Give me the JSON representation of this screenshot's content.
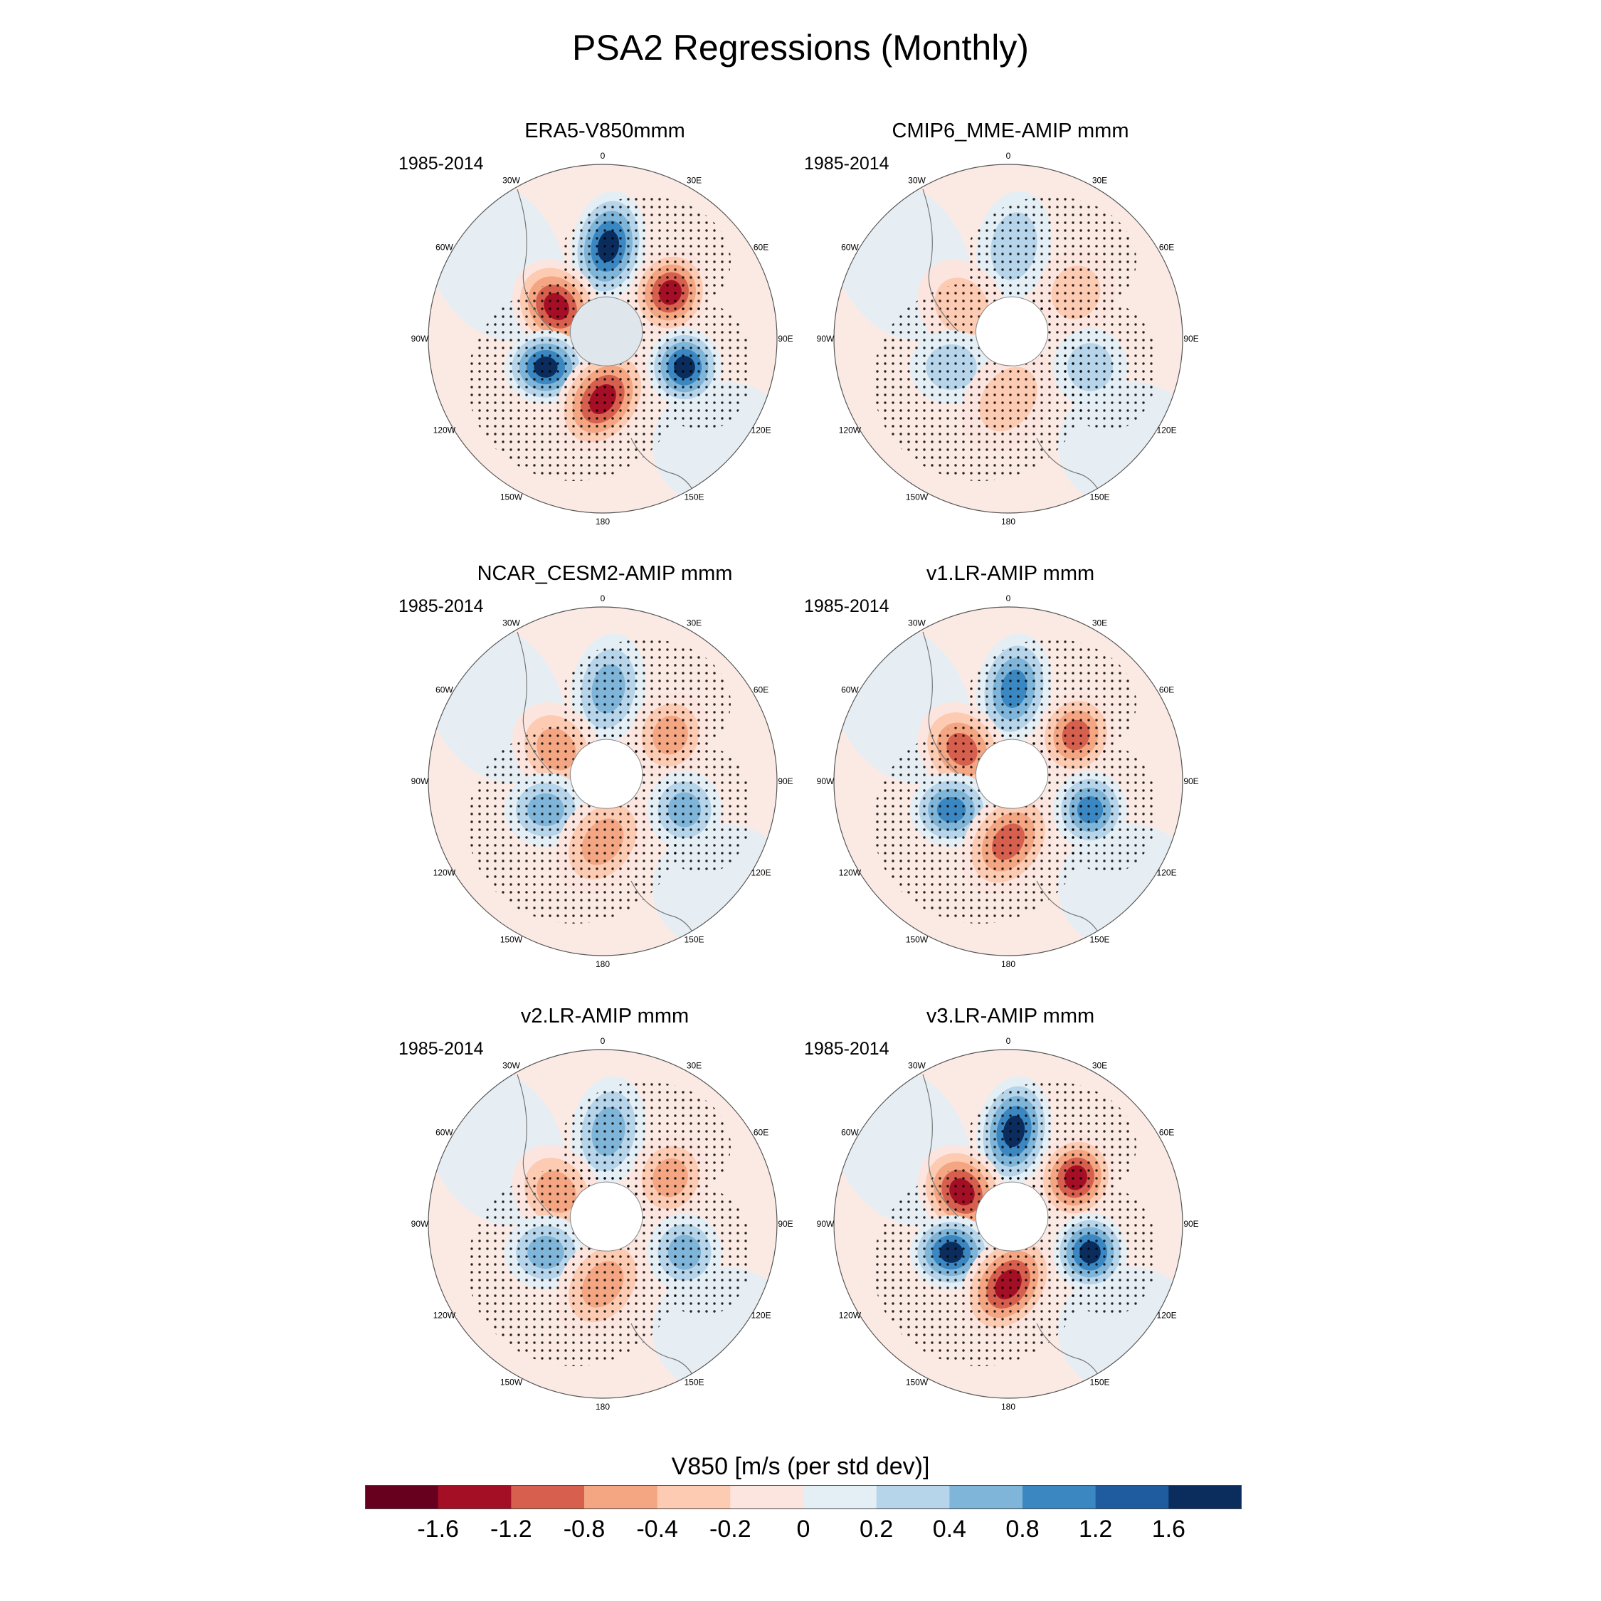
{
  "title": "PSA2 Regressions (Monthly)",
  "lon_labels": [
    "0",
    "30E",
    "60E",
    "90E",
    "120E",
    "150E",
    "180",
    "150W",
    "120W",
    "90W",
    "60W",
    "30W"
  ],
  "panels": [
    {
      "title": "ERA5-V850mmm",
      "period": "1985-2014",
      "intensity": 1.0
    },
    {
      "title": "CMIP6_MME-AMIP  mmm",
      "period": "1985-2014",
      "intensity": 0.45
    },
    {
      "title": "NCAR_CESM2-AMIP  mmm",
      "period": "1985-2014",
      "intensity": 0.6
    },
    {
      "title": "v1.LR-AMIP  mmm",
      "period": "1985-2014",
      "intensity": 0.85
    },
    {
      "title": "v2.LR-AMIP  mmm",
      "period": "1985-2014",
      "intensity": 0.65
    },
    {
      "title": "v3.LR-AMIP  mmm",
      "period": "1985-2014",
      "intensity": 1.0
    }
  ],
  "colorbar": {
    "title": "V850 [m/s (per std dev)]",
    "tick_labels": [
      "-1.6",
      "-1.2",
      "-0.8",
      "-0.4",
      "-0.2",
      "0",
      "0.2",
      "0.4",
      "0.8",
      "1.2",
      "1.6"
    ],
    "colors": [
      "#67001f",
      "#a50f25",
      "#d6604d",
      "#f4a582",
      "#fdcab2",
      "#fbe5de",
      "#e4eef5",
      "#b7d5ea",
      "#7fb5d8",
      "#3b87c2",
      "#1e5c9f",
      "#0b2d5e"
    ]
  }
}
